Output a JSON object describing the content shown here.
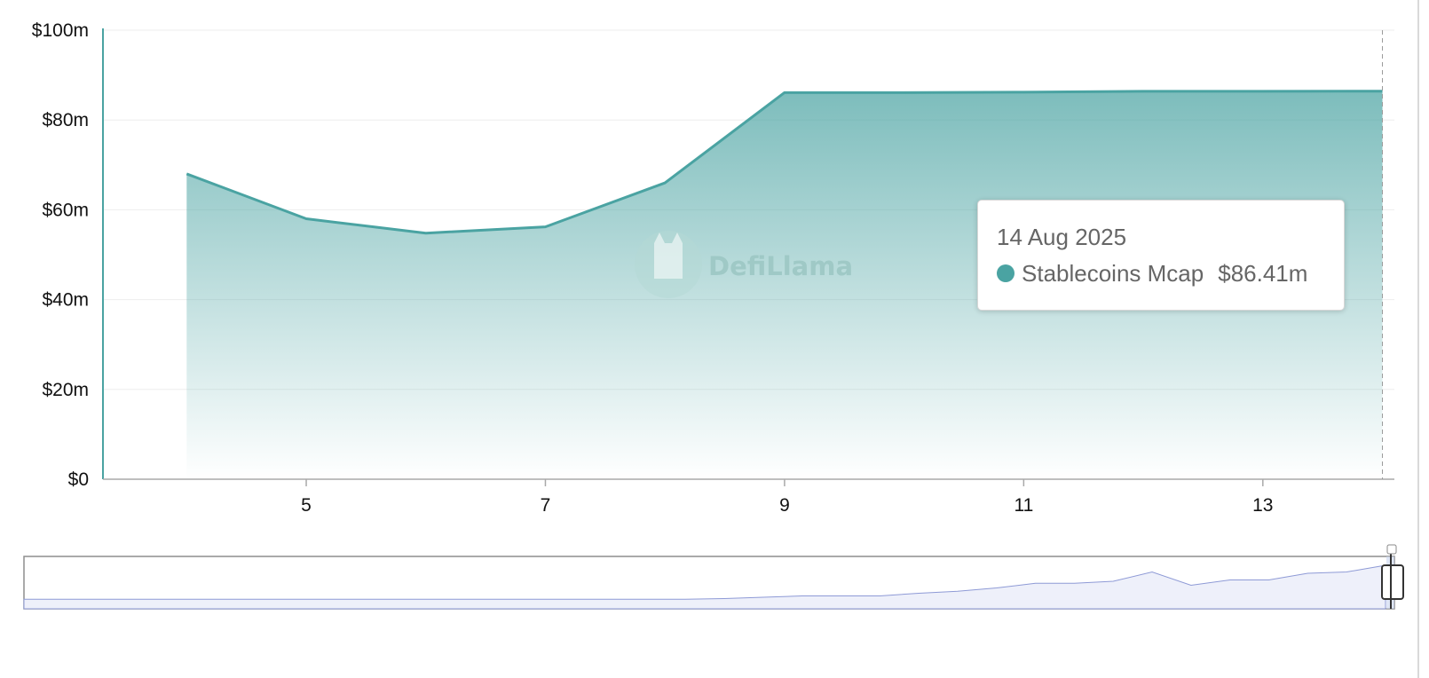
{
  "chart_data": {
    "type": "area",
    "x_label_unit": "day of Aug 2025",
    "x": [
      4,
      5,
      6,
      7,
      8,
      9,
      10,
      11,
      12,
      13,
      14
    ],
    "series": [
      {
        "name": "Stablecoins Mcap",
        "values": [
          68.0,
          58.0,
          54.8,
          56.2,
          66.0,
          86.1,
          86.1,
          86.2,
          86.4,
          86.4,
          86.41
        ]
      }
    ],
    "y_tick_labels": [
      "$0",
      "$20m",
      "$40m",
      "$60m",
      "$80m",
      "$100m"
    ],
    "y_tick_values": [
      0,
      20,
      40,
      60,
      80,
      100
    ],
    "x_tick_labels": [
      "5",
      "7",
      "9",
      "11",
      "13"
    ],
    "x_tick_values": [
      5,
      7,
      9,
      11,
      13
    ],
    "ylim": [
      0,
      100
    ],
    "xlim": [
      3.3,
      14.1
    ],
    "grid": true,
    "colors": {
      "line": "#4aa3a2",
      "area": "#4aa3a2",
      "brush": "#8e9ad6"
    },
    "brush_overview": [
      1,
      1,
      1,
      1,
      1,
      1,
      1,
      1,
      1,
      1,
      1,
      1,
      1,
      1,
      1,
      1,
      1,
      1,
      2,
      4,
      6,
      6,
      6,
      10,
      13,
      18,
      25,
      25,
      28,
      42,
      22,
      30,
      30,
      40,
      42,
      52
    ]
  },
  "tooltip": {
    "date": "14 Aug 2025",
    "series_label": "Stablecoins Mcap",
    "value": "$86.41m",
    "dot_color": "#4aa3a2"
  },
  "watermark": {
    "text": "DefiLlama"
  }
}
